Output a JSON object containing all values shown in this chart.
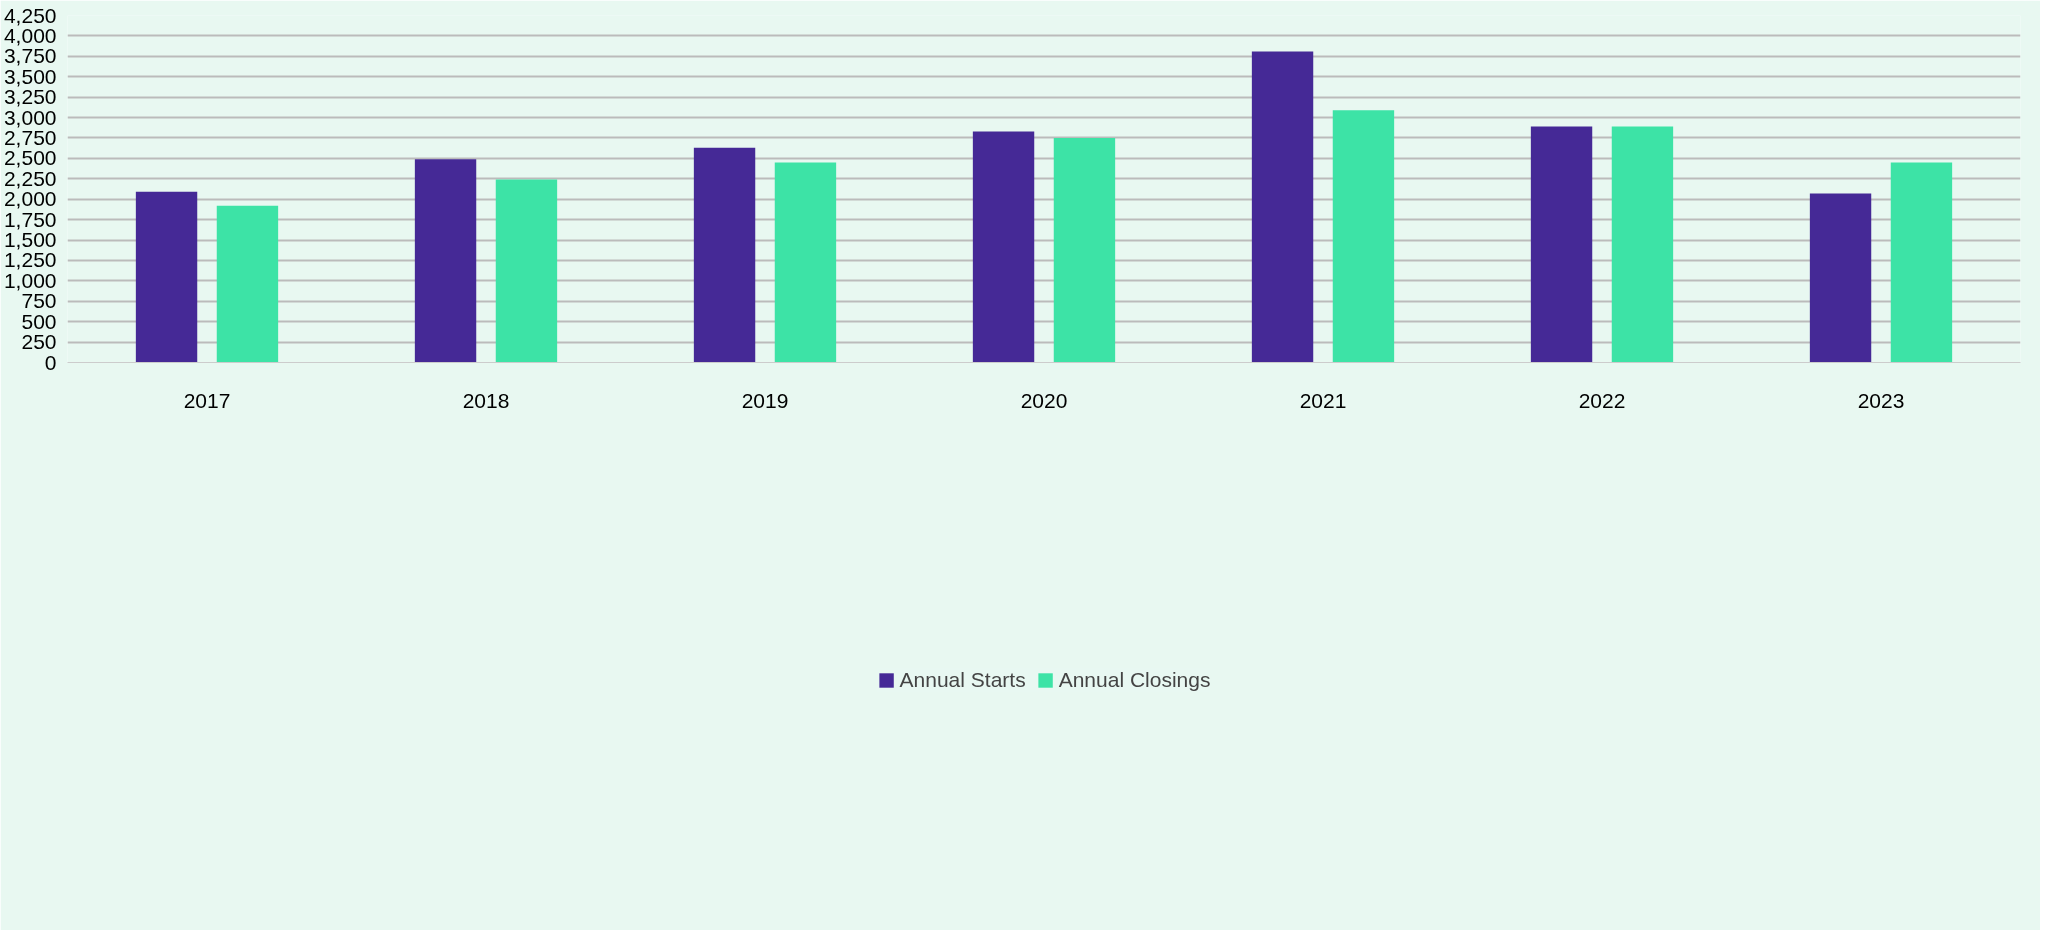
{
  "chart_data": {
    "type": "bar",
    "categories": [
      "2017",
      "2018",
      "2019",
      "2020",
      "2021",
      "2022",
      "2023"
    ],
    "series": [
      {
        "name": "Annual Starts",
        "color": "#452996",
        "values": [
          2090,
          2490,
          2630,
          2830,
          3810,
          2890,
          2070
        ]
      },
      {
        "name": "Annual Closings",
        "color": "#3de3a6",
        "values": [
          1920,
          2240,
          2450,
          2750,
          3090,
          2890,
          2450
        ]
      }
    ],
    "ylim": [
      0,
      4250
    ],
    "yticks": [
      {
        "value": 0,
        "label": "0"
      },
      {
        "value": 250,
        "label": "250"
      },
      {
        "value": 500,
        "label": "500"
      },
      {
        "value": 750,
        "label": "750"
      },
      {
        "value": 1000,
        "label": "1,000"
      },
      {
        "value": 1250,
        "label": "1,250"
      },
      {
        "value": 1500,
        "label": "1,500"
      },
      {
        "value": 1750,
        "label": "1,750"
      },
      {
        "value": 2000,
        "label": "2,000"
      },
      {
        "value": 2250,
        "label": "2,250"
      },
      {
        "value": 2500,
        "label": "2,500"
      },
      {
        "value": 2750,
        "label": "2,750"
      },
      {
        "value": 3000,
        "label": "3,000"
      },
      {
        "value": 3250,
        "label": "3,250"
      },
      {
        "value": 3500,
        "label": "3,500"
      },
      {
        "value": 3750,
        "label": "3,750"
      },
      {
        "value": 4000,
        "label": "4,000"
      },
      {
        "value": 4250,
        "label": "4,250"
      }
    ],
    "grid": "y",
    "legend": "bottom"
  }
}
